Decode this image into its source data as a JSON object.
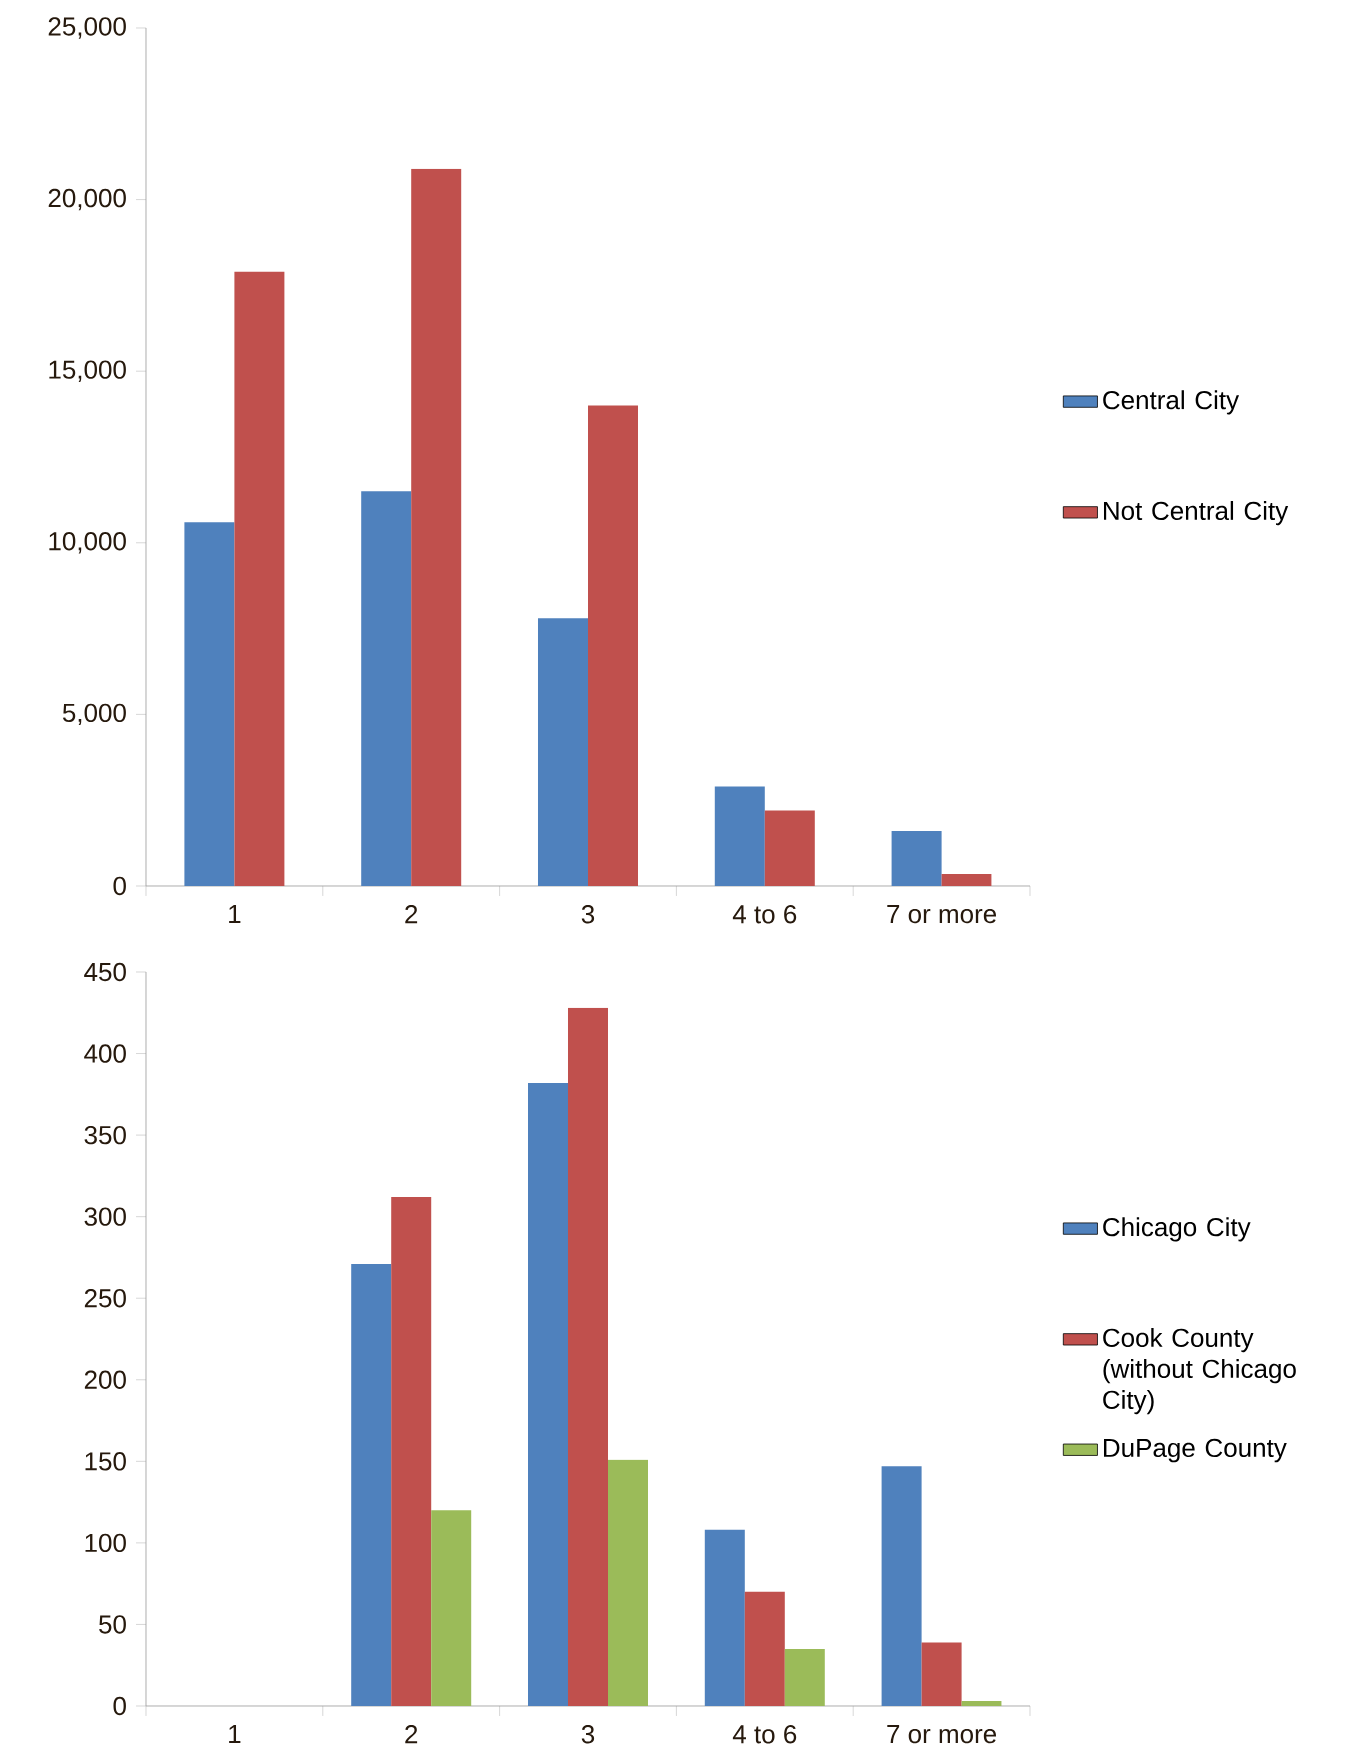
{
  "chart_data": [
    {
      "type": "bar",
      "categories": [
        "1",
        "2",
        "3",
        "4 to 6",
        "7 or more"
      ],
      "series": [
        {
          "name": "Central City",
          "color": "#4f81bd",
          "values": [
            10600,
            11500,
            7800,
            2900,
            1600
          ]
        },
        {
          "name": "Not Central City",
          "color": "#c0504d",
          "values": [
            17900,
            20900,
            14000,
            2200,
            350
          ]
        }
      ],
      "ylim": [
        0,
        25000
      ],
      "yticks": [
        {
          "value": 0,
          "label": "0"
        },
        {
          "value": 5000,
          "label": "5,000"
        },
        {
          "value": 10000,
          "label": "10,000"
        },
        {
          "value": 15000,
          "label": "15,000"
        },
        {
          "value": 20000,
          "label": "20,000"
        },
        {
          "value": 25000,
          "label": "25,000"
        }
      ],
      "legend": "right"
    },
    {
      "type": "bar",
      "categories": [
        "1",
        "2",
        "3",
        "4 to 6",
        "7 or more"
      ],
      "series": [
        {
          "name": "Chicago City",
          "color": "#4f81bd",
          "values": [
            0,
            271,
            382,
            108,
            147
          ]
        },
        {
          "name": "Cook County (without Chicago City)",
          "color": "#c0504d",
          "values": [
            0,
            312,
            428,
            70,
            39
          ]
        },
        {
          "name": "DuPage County",
          "color": "#9bbb59",
          "values": [
            0,
            120,
            151,
            35,
            3
          ]
        }
      ],
      "ylim": [
        0,
        450
      ],
      "yticks": [
        0,
        50,
        100,
        150,
        200,
        250,
        300,
        350,
        400,
        450
      ],
      "legend": "right"
    }
  ]
}
